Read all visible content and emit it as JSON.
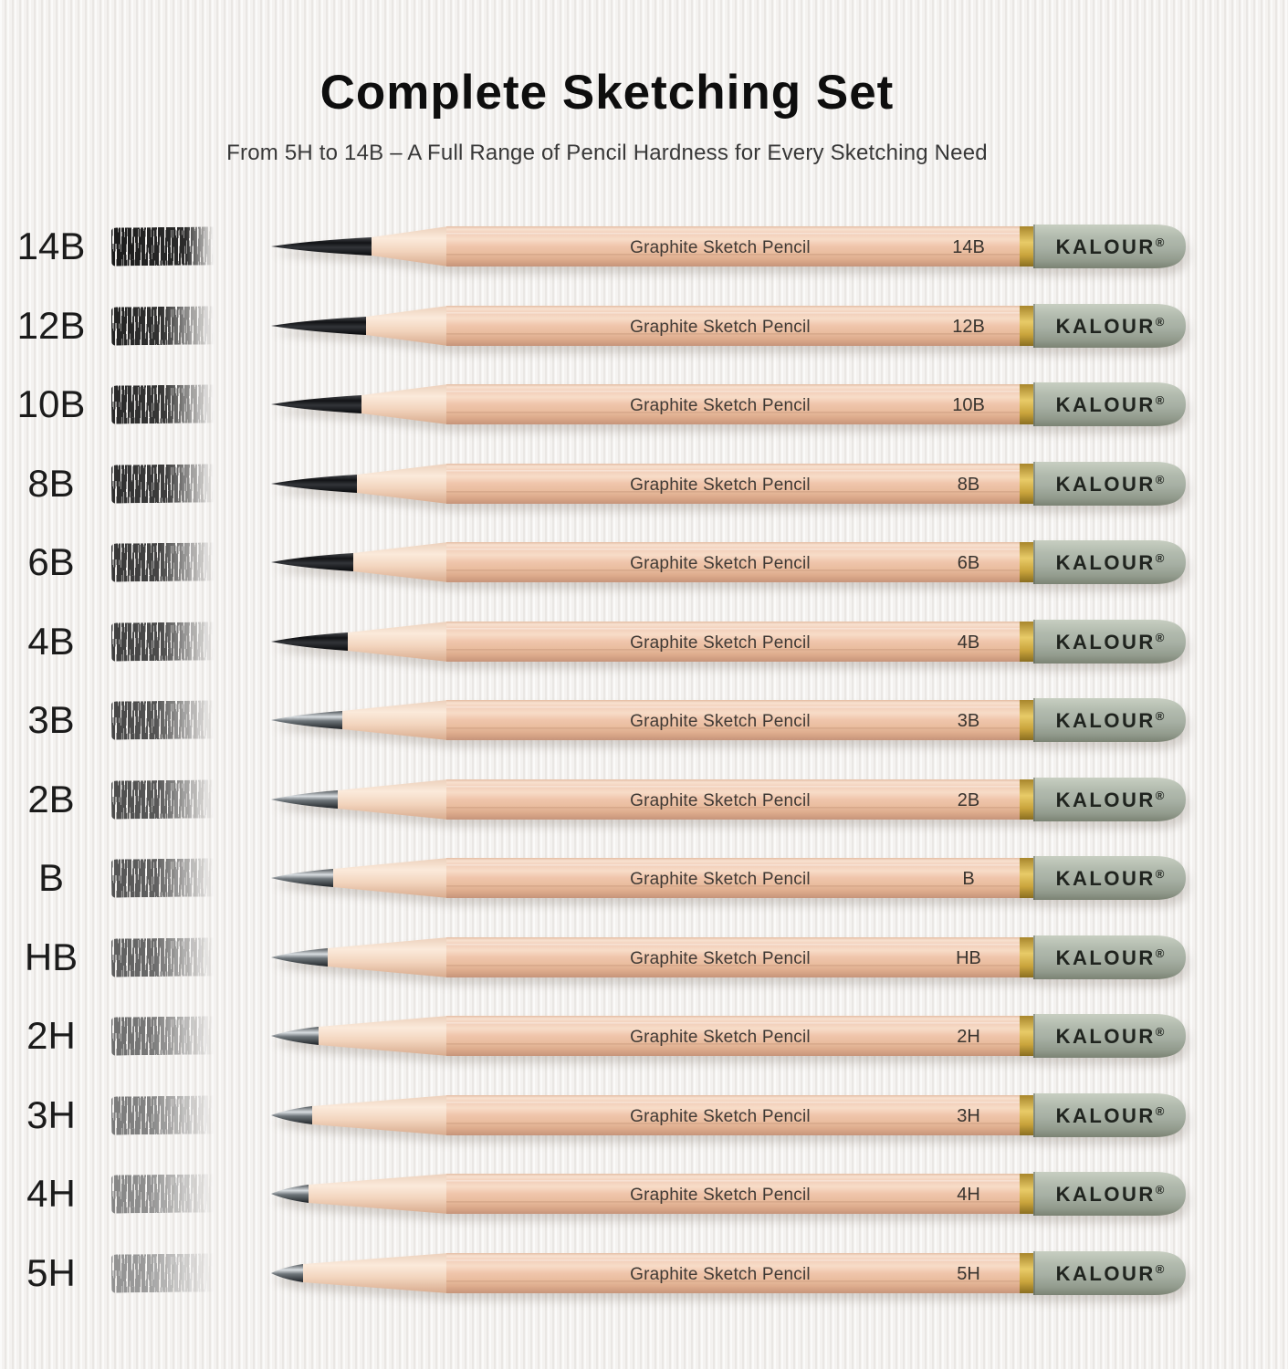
{
  "header": {
    "title": "Complete Sketching Set",
    "subtitle": "From 5H to 14B – A Full Range of Pencil Hardness for Every Sketching Need"
  },
  "brand": {
    "name": "KALOUR",
    "reg": "®"
  },
  "pencil": {
    "print_text": "Graphite Sketch Pencil"
  },
  "colors": {
    "background": "#f4f2f0",
    "title_text": "#0e0e0e",
    "subtitle_text": "#383838",
    "grade_label_text": "#1b1b1b",
    "pencil_wood_body": "#eec3a9",
    "pencil_wood_highlight": "#f8e4d4",
    "pencil_wood_shadow": "#cc9a7e",
    "sharpened_wood": "#f4d9c4",
    "gold_band": "#d9b954",
    "end_cap": "#a9b2a8",
    "end_cap_shadow": "#828a78",
    "graphite_soft_tip": "#17181a",
    "graphite_hard_tip": "#5a6066",
    "print_text": "#403a35",
    "brand_text": "#20241f"
  },
  "rows": [
    {
      "grade": "14B",
      "swatch": {
        "shade": "#1a1a1a",
        "solid": "70%"
      },
      "tip_len": 112,
      "tip": "matte"
    },
    {
      "grade": "12B",
      "swatch": {
        "shade": "#222222",
        "solid": "48%"
      },
      "tip_len": 106,
      "tip": "matte"
    },
    {
      "grade": "10B",
      "swatch": {
        "shade": "#282828",
        "solid": "50%"
      },
      "tip_len": 101,
      "tip": "matte"
    },
    {
      "grade": "8B",
      "swatch": {
        "shade": "#2e2e2e",
        "solid": "52%"
      },
      "tip_len": 96,
      "tip": "matte"
    },
    {
      "grade": "6B",
      "swatch": {
        "shade": "#373737",
        "solid": "46%"
      },
      "tip_len": 92,
      "tip": "matte"
    },
    {
      "grade": "4B",
      "swatch": {
        "shade": "#3f3f3f",
        "solid": "48%"
      },
      "tip_len": 86,
      "tip": "matte"
    },
    {
      "grade": "3B",
      "swatch": {
        "shade": "#464646",
        "solid": "42%"
      },
      "tip_len": 80,
      "tip": "metallic"
    },
    {
      "grade": "2B",
      "swatch": {
        "shade": "#4c4c4c",
        "solid": "45%"
      },
      "tip_len": 75,
      "tip": "metallic"
    },
    {
      "grade": "B",
      "swatch": {
        "shade": "#545454",
        "solid": "42%"
      },
      "tip_len": 70,
      "tip": "metallic"
    },
    {
      "grade": "HB",
      "swatch": {
        "shade": "#5e5e5e",
        "solid": "40%"
      },
      "tip_len": 64,
      "tip": "metallic"
    },
    {
      "grade": "2H",
      "swatch": {
        "shade": "#6e6e6e",
        "solid": "38%"
      },
      "tip_len": 54,
      "tip": "metallic"
    },
    {
      "grade": "3H",
      "swatch": {
        "shade": "#7a7a7a",
        "solid": "36%"
      },
      "tip_len": 47,
      "tip": "metallic"
    },
    {
      "grade": "4H",
      "swatch": {
        "shade": "#868686",
        "solid": "34%"
      },
      "tip_len": 43,
      "tip": "metallic"
    },
    {
      "grade": "5H",
      "swatch": {
        "shade": "#929292",
        "solid": "30%"
      },
      "tip_len": 37,
      "tip": "metallic"
    }
  ]
}
